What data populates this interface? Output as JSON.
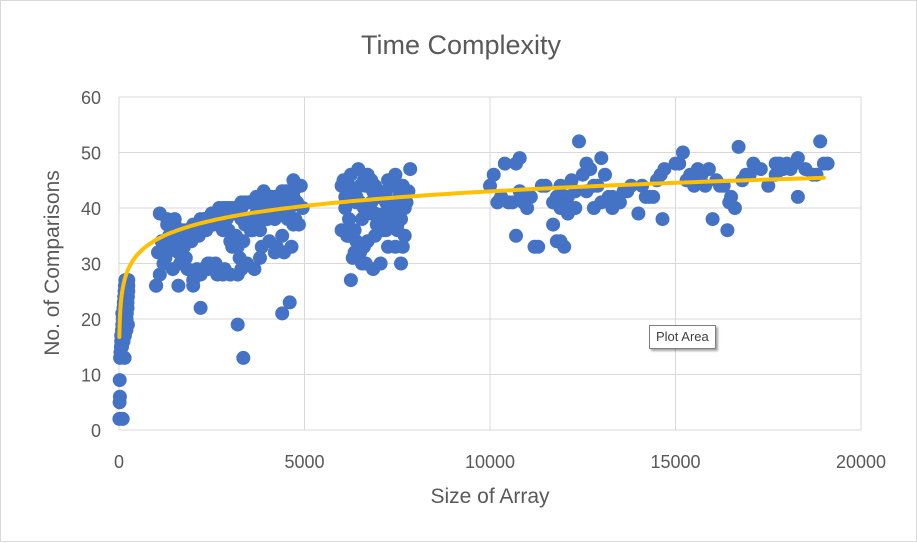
{
  "chart_data": {
    "type": "scatter",
    "title": "Time Complexity",
    "xlabel": "Size of Array",
    "ylabel": "No. of Comparisons",
    "xlim": [
      0,
      20000
    ],
    "ylim": [
      0,
      60
    ],
    "xticks": [
      0,
      5000,
      10000,
      15000,
      20000
    ],
    "yticks": [
      0,
      10,
      20,
      30,
      40,
      50,
      60
    ],
    "grid": true,
    "legend": "none",
    "colors": {
      "points": "#4472c4",
      "trendline": "#ffc000",
      "gridlines": "#d9d9d9",
      "text": "#595959"
    },
    "trendline": {
      "type": "logarithmic",
      "a": 3.8,
      "b": 8.0,
      "x_range": [
        10,
        19000
      ]
    },
    "series": [
      {
        "x": [
          10,
          15,
          20,
          25,
          30,
          40,
          50,
          60,
          70,
          80,
          90,
          100,
          110,
          120,
          130,
          140,
          150,
          160,
          170,
          180,
          190,
          200,
          210,
          220,
          230,
          240,
          250,
          100,
          150,
          200,
          250,
          60,
          80,
          120,
          160,
          200,
          240,
          90,
          130,
          170,
          210,
          250,
          200,
          150,
          230,
          1000,
          1100,
          1200,
          1300,
          1400,
          1500,
          1600,
          1700,
          1800,
          1900,
          2000,
          2100,
          2200,
          2300,
          2400,
          2500,
          2600,
          2700,
          2800,
          2900,
          3000,
          3100,
          3200,
          3300,
          3400,
          3500,
          3600,
          3700,
          3800,
          3900,
          4000,
          4100,
          4200,
          4300,
          4400,
          4500,
          4600,
          4700,
          4800,
          4900,
          1050,
          1250,
          1450,
          1650,
          1850,
          2050,
          2250,
          2450,
          2650,
          2850,
          3050,
          3250,
          3450,
          3650,
          3850,
          4050,
          4250,
          4450,
          4650,
          4850,
          1150,
          1350,
          1550,
          1750,
          1950,
          2150,
          2350,
          2550,
          2750,
          2950,
          3150,
          3350,
          3550,
          3750,
          3950,
          4150,
          4350,
          4550,
          4750,
          4950,
          1200,
          1400,
          1600,
          1800,
          2000,
          2200,
          2400,
          2600,
          2800,
          3000,
          3200,
          3400,
          3600,
          3800,
          4000,
          4200,
          4400,
          4600,
          4800,
          1300,
          1500,
          1700,
          1900,
          2100,
          2300,
          2500,
          2700,
          2900,
          3100,
          3300,
          3500,
          3700,
          3900,
          4100,
          4300,
          4500,
          4700,
          1100,
          1300,
          1500,
          1700,
          1900,
          2100,
          2300,
          2500,
          2700,
          2900,
          3100,
          3300,
          3500,
          3700,
          3900,
          4100,
          4300,
          4500,
          4700,
          1000,
          1600,
          2000,
          2200,
          2400,
          2800,
          3000,
          3200,
          3300,
          3800,
          4200,
          4400,
          4600,
          4700,
          2100,
          3200,
          3350,
          4400,
          4700,
          6000,
          6100,
          6200,
          6300,
          6400,
          6500,
          6600,
          6700,
          6800,
          6900,
          7000,
          7100,
          7200,
          7300,
          7400,
          7500,
          7600,
          7700,
          7800,
          6050,
          6250,
          6450,
          6650,
          6850,
          7050,
          7250,
          7450,
          7650,
          7850,
          6150,
          6350,
          6550,
          6750,
          6950,
          7150,
          7350,
          7550,
          7750,
          6000,
          6200,
          6400,
          6600,
          6800,
          7000,
          7200,
          7400,
          7600,
          6300,
          6500,
          6700,
          6900,
          7100,
          7300,
          7500,
          7700,
          6100,
          6300,
          6500,
          6700,
          6900,
          7100,
          7300,
          7500,
          7700,
          6200,
          6400,
          6600,
          6800,
          7000,
          7200,
          7400,
          7600,
          6250,
          6350,
          6450,
          6550,
          6650,
          6850,
          7050,
          7250,
          7450,
          7650,
          6250,
          7600,
          7500,
          10100,
          10200,
          10400,
          10600,
          10700,
          10800,
          10900,
          11100,
          11300,
          11500,
          11700,
          11800,
          11900,
          12000,
          12100,
          12200,
          12300,
          12400,
          12500,
          12600,
          12700,
          12800,
          12900,
          13000,
          13100,
          13200,
          13300,
          13500,
          13700,
          13800,
          14000,
          14200,
          14400,
          14500,
          14600,
          14700,
          10000,
          10300,
          10500,
          10800,
          11000,
          11400,
          11700,
          11900,
          12100,
          12300,
          12600,
          12800,
          13000,
          13300,
          13600,
          14100,
          14300,
          14650,
          15100,
          15300,
          15500,
          15700,
          15900,
          16100,
          16300,
          16500,
          16700,
          16900,
          17100,
          17300,
          17500,
          17700,
          17900,
          18100,
          18300,
          18500,
          18700,
          18900,
          19100,
          10700,
          11200,
          11800,
          12000,
          11900,
          15200,
          15400,
          15600,
          16000,
          16200,
          16400,
          16600,
          16800,
          17000,
          17800,
          18000,
          18200,
          18300,
          18800,
          19000,
          15000,
          15800,
          16450,
          17700
        ],
        "y": [
          2,
          5,
          9,
          6,
          13,
          14,
          15,
          16,
          17,
          18,
          19,
          20,
          21,
          22,
          23,
          24,
          25,
          26,
          27,
          18,
          19,
          20,
          21,
          22,
          23,
          24,
          26,
          2,
          13,
          20,
          27,
          17,
          15,
          16,
          17,
          18,
          19,
          21,
          22,
          23,
          24,
          25,
          20,
          21,
          22,
          26,
          28,
          30,
          32,
          33,
          34,
          34,
          35,
          36,
          36,
          37,
          37,
          38,
          38,
          38,
          39,
          39,
          39,
          40,
          40,
          40,
          40,
          40,
          41,
          41,
          41,
          41,
          41,
          42,
          42,
          42,
          42,
          42,
          42,
          43,
          43,
          43,
          43,
          44,
          44,
          32,
          31,
          29,
          30,
          29,
          28,
          29,
          30,
          28,
          29,
          33,
          31,
          30,
          29,
          33,
          34,
          33,
          32,
          33,
          37,
          34,
          35,
          36,
          33,
          34,
          35,
          36,
          37,
          38,
          36,
          35,
          34,
          36,
          37,
          38,
          39,
          39,
          38,
          38,
          40,
          33,
          35,
          32,
          31,
          27,
          28,
          29,
          30,
          36,
          34,
          33,
          37,
          36,
          36,
          38,
          38,
          39,
          40,
          41,
          37,
          38,
          36,
          36,
          37,
          38,
          39,
          40,
          40,
          39,
          38,
          38,
          39,
          40,
          41,
          41,
          42,
          43,
          39,
          38,
          37,
          35,
          36,
          37,
          37,
          38,
          39,
          38,
          39,
          40,
          41,
          42,
          43,
          42,
          40,
          41,
          42,
          26,
          26,
          26,
          22,
          30,
          28,
          28,
          19,
          29,
          31,
          32,
          21,
          23,
          37,
          29,
          28,
          13,
          35,
          45,
          44,
          40,
          38,
          36,
          42,
          44,
          45,
          46,
          45,
          44,
          43,
          42,
          41,
          40,
          39,
          40,
          41,
          42,
          43,
          45,
          46,
          47,
          44,
          43,
          42,
          45,
          46,
          44,
          47,
          35,
          36,
          38,
          40,
          37,
          39,
          41,
          42,
          41,
          36,
          35,
          34,
          33,
          39,
          37,
          36,
          40,
          38,
          31,
          32,
          34,
          35,
          36,
          37,
          38,
          40,
          42,
          43,
          41,
          40,
          39,
          38,
          37,
          36,
          35,
          44,
          41,
          40,
          41,
          42,
          43,
          44,
          44,
          36,
          32,
          31,
          30,
          30,
          29,
          30,
          33,
          33,
          33,
          27,
          30,
          37,
          46,
          41,
          48,
          41,
          48,
          49,
          41,
          42,
          33,
          44,
          37,
          34,
          44,
          40,
          39,
          45,
          43,
          52,
          46,
          48,
          47,
          40,
          44,
          49,
          46,
          42,
          40,
          41,
          43,
          44,
          39,
          42,
          42,
          45,
          46,
          47,
          44,
          42,
          41,
          43,
          40,
          44,
          41,
          40,
          42,
          40,
          43,
          44,
          41,
          42,
          43,
          44,
          42,
          38,
          48,
          45,
          44,
          46,
          47,
          45,
          44,
          42,
          51,
          46,
          48,
          47,
          44,
          46,
          47,
          47,
          49,
          47,
          46,
          52,
          48,
          35,
          33,
          42,
          33,
          34,
          50,
          46,
          47,
          38,
          44,
          36,
          40,
          45,
          46,
          48,
          48,
          48,
          42,
          46,
          48,
          48,
          44,
          41,
          48
        ]
      }
    ]
  },
  "plot_area_tooltip": "Plot Area"
}
